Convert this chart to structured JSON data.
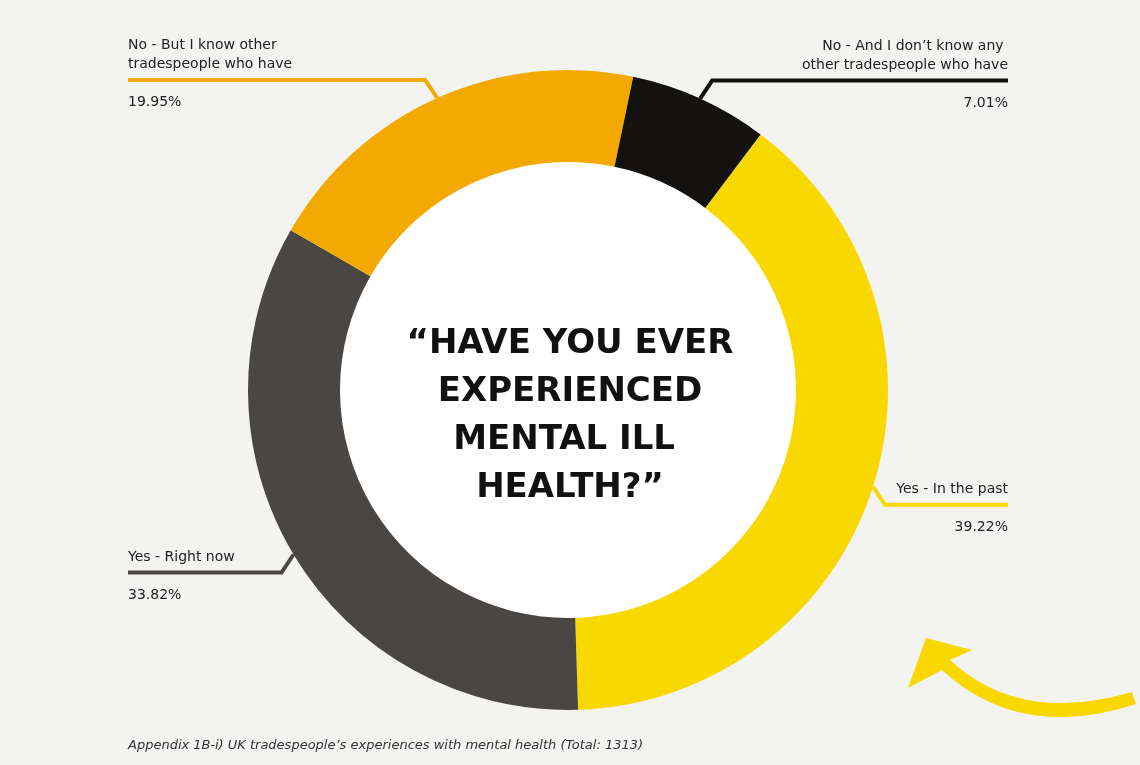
{
  "chart_data": {
    "type": "donut",
    "title": "“HAVE YOU EVER EXPERIENCED MENTAL ILL HEALTH?”",
    "categories": [
      "Yes - In the past",
      "Yes - Right now",
      "No - But I know other tradespeople who have",
      "No - And I don’t know any other tradespeople who have"
    ],
    "values": [
      39.22,
      33.82,
      19.95,
      7.01
    ],
    "value_labels": [
      "39.22%",
      "33.82%",
      "19.95%",
      "7.01%"
    ],
    "colors": [
      "#f8d800",
      "#4a4643",
      "#f4a900",
      "#141210"
    ],
    "annotations": [
      "Appendix 1B-i) UK tradespeople’s experiences with mental health (Total: 1313)"
    ],
    "legend": false
  }
}
